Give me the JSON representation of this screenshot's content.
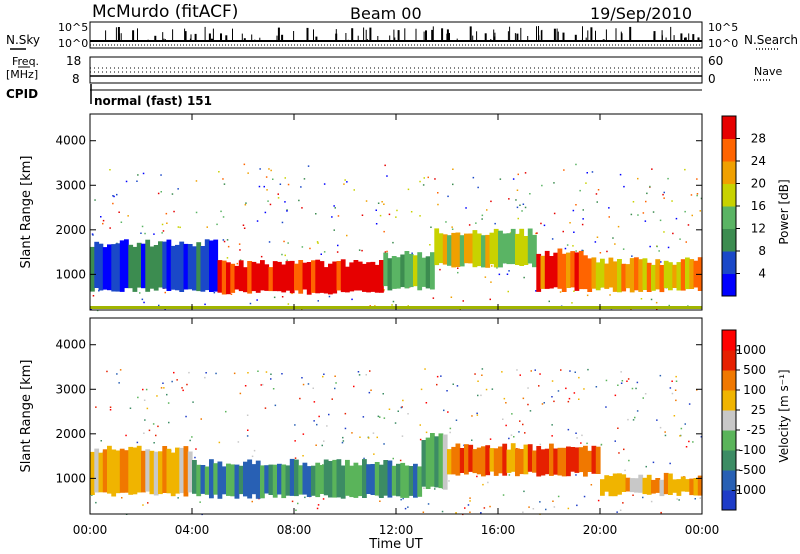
{
  "header": {
    "station": "McMurdo (fitACF)",
    "beam": "Beam 00",
    "date": "19/Sep/2010"
  },
  "panels": {
    "nsky_label": "N.Sky",
    "nsearch_label": "N.Search",
    "noise_ticks_left": [
      "10^5",
      "10^0"
    ],
    "noise_ticks_right": [
      "10^5",
      "10^0"
    ],
    "freq_label_1": "Freq.",
    "freq_label_2": "[MHz]",
    "freq_ticks": [
      "18",
      "8"
    ],
    "nave_label": "Nave",
    "nave_ticks": [
      "60",
      "0"
    ],
    "cpid_label": "CPID",
    "cpid_value": "normal (fast) 151"
  },
  "chart_data": [
    {
      "type": "heatmap",
      "name": "power",
      "ylabel": "Slant Range [km]",
      "yticks": [
        1000,
        2000,
        3000,
        4000
      ],
      "ylim": [
        200,
        4600
      ],
      "xlim": [
        0,
        24
      ],
      "colorbar_label": "Power [dB]",
      "colorbar_ticks": [
        "28",
        "24",
        "20",
        "16",
        "12",
        "8",
        "4"
      ],
      "colors": [
        "#0000ff",
        "#1a48c8",
        "#3c8c50",
        "#5ab464",
        "#c8d200",
        "#f0a000",
        "#ff6400",
        "#e60000"
      ],
      "bands": [
        {
          "start": 0.0,
          "end": 5.0,
          "low": 650,
          "high": 1700,
          "level": 1
        },
        {
          "start": 5.0,
          "end": 11.5,
          "low": 600,
          "high": 1250,
          "level": 7
        },
        {
          "start": 11.5,
          "end": 13.5,
          "low": 700,
          "high": 1450,
          "level": 3
        },
        {
          "start": 13.5,
          "end": 17.5,
          "low": 1200,
          "high": 1950,
          "level": 4
        },
        {
          "start": 17.5,
          "end": 19.5,
          "low": 650,
          "high": 1500,
          "level": 6
        },
        {
          "start": 19.5,
          "end": 24.0,
          "low": 650,
          "high": 1300,
          "level": 5
        }
      ]
    },
    {
      "type": "heatmap",
      "name": "velocity",
      "ylabel": "Slant Range [km]",
      "xlabel": "Time UT",
      "xticks": [
        "00:00",
        "04:00",
        "08:00",
        "12:00",
        "16:00",
        "20:00",
        "00:00"
      ],
      "yticks": [
        1000,
        2000,
        3000,
        4000
      ],
      "ylim": [
        200,
        4600
      ],
      "xlim": [
        0,
        24
      ],
      "colorbar_label": "Velocity [m s⁻¹]",
      "colorbar_ticks": [
        "1000",
        "500",
        "100",
        "25",
        "-25",
        "-100",
        "-500",
        "-1000"
      ],
      "colors": [
        "#1e3cc8",
        "#2860b4",
        "#3c8c64",
        "#5ab45a",
        "#c8c8c8",
        "#f0b400",
        "#f07800",
        "#e62000",
        "#ff0000"
      ],
      "bands": [
        {
          "start": 0.0,
          "end": 4.0,
          "low": 650,
          "high": 1650,
          "level": 5
        },
        {
          "start": 4.0,
          "end": 13.0,
          "low": 600,
          "high": 1350,
          "level": 2
        },
        {
          "start": 13.0,
          "end": 14.0,
          "low": 800,
          "high": 1950,
          "level": 3
        },
        {
          "start": 14.0,
          "end": 20.0,
          "low": 1100,
          "high": 1700,
          "level": 6
        },
        {
          "start": 20.0,
          "end": 24.0,
          "low": 650,
          "high": 1050,
          "level": 5
        }
      ]
    }
  ]
}
